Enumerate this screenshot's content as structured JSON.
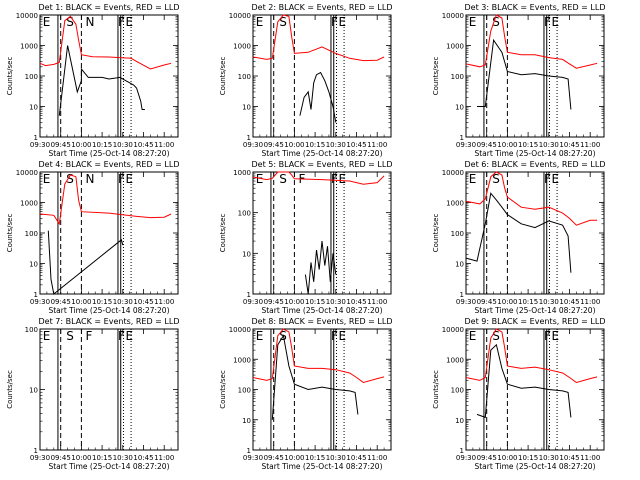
{
  "chart_data": [
    {
      "type": "line",
      "title": "Det 1: BLACK = Events, RED = LLD",
      "xlabel": "Start Time (25-Oct-14 08:27:20)",
      "ylabel": "Counts/sec",
      "yscale": "log",
      "ylim": [
        1,
        10000
      ],
      "x_ticks": [
        "09:30",
        "09:45",
        "10:00",
        "10:15",
        "10:30",
        "10:45",
        "11:00"
      ],
      "event_letters": [
        "E",
        "S",
        "N",
        "F",
        "E"
      ],
      "series": [
        {
          "color": "#ff0000",
          "x": [
            "09:30",
            "09:34",
            "09:40",
            "09:44",
            "09:48",
            "09:52",
            "09:56",
            "09:58",
            "10:00",
            "10:08",
            "10:20",
            "10:36",
            "10:40",
            "10:50",
            "11:00",
            "11:05"
          ],
          "y": [
            260,
            220,
            240,
            280,
            6500,
            9000,
            5000,
            1500,
            500,
            430,
            420,
            380,
            300,
            170,
            230,
            260
          ]
        },
        {
          "color": "#000000",
          "x": [
            "09:44",
            "09:50",
            "09:57",
            "10:00",
            "10:00",
            "10:05",
            "10:15",
            "10:20",
            "10:28",
            "10:38",
            "10:40",
            "10:43",
            "10:44",
            "10:46"
          ],
          "y": [
            5,
            1000,
            30,
            70,
            170,
            90,
            90,
            80,
            90,
            50,
            40,
            15,
            8,
            8
          ]
        }
      ]
    },
    {
      "type": "line",
      "title": "Det 2: BLACK = Events, RED = LLD",
      "xlabel": "Start Time (25-Oct-14 08:27:20)",
      "ylabel": "Counts/sec",
      "yscale": "log",
      "ylim": [
        1,
        10000
      ],
      "x_ticks": [
        "09:30",
        "09:45",
        "10:00",
        "10:15",
        "10:30",
        "10:45",
        "11:00"
      ],
      "event_letters": [
        "E",
        "S",
        "F",
        "E"
      ],
      "series": [
        {
          "color": "#ff0000",
          "x": [
            "09:30",
            "09:40",
            "09:44",
            "09:48",
            "09:52",
            "09:56",
            "09:58",
            "10:00",
            "10:10",
            "10:20",
            "10:30",
            "10:40",
            "10:50",
            "11:00",
            "11:05"
          ],
          "y": [
            420,
            350,
            380,
            6000,
            10000,
            9000,
            2000,
            550,
            600,
            900,
            550,
            380,
            320,
            330,
            420
          ]
        },
        {
          "color": "#000000",
          "x": [
            "10:04",
            "10:07",
            "10:10",
            "10:12",
            "10:14",
            "10:16",
            "10:19",
            "10:22",
            "10:25",
            "10:28",
            "10:30"
          ],
          "y": [
            5,
            20,
            30,
            8,
            60,
            110,
            130,
            70,
            30,
            10,
            3
          ]
        }
      ]
    },
    {
      "type": "line",
      "title": "Det 3: BLACK = Events, RED = LLD",
      "xlabel": "Start Time (25-Oct-14 08:27:20)",
      "ylabel": "Counts/sec",
      "yscale": "log",
      "ylim": [
        1,
        10000
      ],
      "x_ticks": [
        "09:30",
        "09:45",
        "10:00",
        "10:15",
        "10:30",
        "10:45",
        "11:00"
      ],
      "event_letters": [
        "E",
        "S",
        "F",
        "E"
      ],
      "series": [
        {
          "color": "#ff0000",
          "x": [
            "09:30",
            "09:40",
            "09:44",
            "09:48",
            "09:52",
            "09:56",
            "09:58",
            "10:00",
            "10:10",
            "10:20",
            "10:30",
            "10:40",
            "10:45",
            "10:50",
            "11:00",
            "11:05"
          ],
          "y": [
            250,
            200,
            230,
            3000,
            10000,
            8000,
            2000,
            600,
            500,
            500,
            400,
            350,
            250,
            180,
            230,
            260
          ]
        },
        {
          "color": "#000000",
          "x": [
            "09:38",
            "09:44",
            "09:50",
            "09:56",
            "10:00",
            "10:10",
            "10:20",
            "10:30",
            "10:40",
            "10:44",
            "10:46"
          ],
          "y": [
            10,
            10,
            1500,
            600,
            140,
            110,
            120,
            100,
            90,
            80,
            8
          ]
        }
      ]
    },
    {
      "type": "line",
      "title": "Det 4: BLACK = Events, RED = LLD",
      "xlabel": "Start Time (25-Oct-14 08:27:20)",
      "ylabel": "Counts/sec",
      "yscale": "log",
      "ylim": [
        1,
        10000
      ],
      "x_ticks": [
        "09:30",
        "09:45",
        "10:00",
        "10:15",
        "10:30",
        "10:45",
        "11:00"
      ],
      "event_letters": [
        "E",
        "S",
        "N",
        "F",
        "E"
      ],
      "series": [
        {
          "color": "#ff0000",
          "x": [
            "09:30",
            "09:40",
            "09:44",
            "09:48",
            "09:52",
            "09:56",
            "09:58",
            "10:00",
            "10:20",
            "10:40",
            "10:50",
            "11:00",
            "11:05"
          ],
          "y": [
            420,
            380,
            200,
            4000,
            8000,
            7000,
            1200,
            500,
            450,
            350,
            320,
            330,
            420
          ]
        },
        {
          "color": "#000000",
          "x": [
            "09:36",
            "09:38",
            "09:40",
            "10:29",
            "10:30"
          ],
          "y": [
            120,
            3,
            1,
            60,
            40
          ]
        }
      ]
    },
    {
      "type": "line",
      "title": "Det 5: BLACK = Events, RED = LLD",
      "xlabel": "Start Time (25-Oct-14 08:27:20)",
      "ylabel": "Counts/sec",
      "yscale": "log",
      "ylim": [
        1,
        1000
      ],
      "x_ticks": [
        "09:30",
        "09:45",
        "10:00",
        "10:15",
        "10:30",
        "10:45",
        "11:00"
      ],
      "event_letters": [
        "E",
        "S",
        "F",
        "F",
        "E"
      ],
      "series": [
        {
          "color": "#ff0000",
          "x": [
            "09:30",
            "09:40",
            "09:44",
            "09:48",
            "09:52",
            "09:56",
            "09:58",
            "10:00",
            "10:20",
            "10:40",
            "10:50",
            "11:00",
            "11:05"
          ],
          "y": [
            750,
            650,
            700,
            1000,
            1000,
            1000,
            850,
            680,
            650,
            600,
            500,
            550,
            800
          ]
        },
        {
          "color": "#000000",
          "x": [
            "10:08",
            "10:10",
            "10:12",
            "10:14",
            "10:16",
            "10:18",
            "10:20",
            "10:22",
            "10:24",
            "10:26",
            "10:28",
            "10:30"
          ],
          "y": [
            3,
            1,
            6,
            2,
            12,
            4,
            20,
            5,
            15,
            2,
            10,
            3
          ]
        }
      ]
    },
    {
      "type": "line",
      "title": "Det 6: BLACK = Events, RED = LLD",
      "xlabel": "Start Time (25-Oct-14 08:27:20)",
      "ylabel": "Counts/sec",
      "yscale": "log",
      "ylim": [
        1,
        10000
      ],
      "x_ticks": [
        "09:30",
        "09:45",
        "10:00",
        "10:15",
        "10:30",
        "10:45",
        "11:00"
      ],
      "event_letters": [
        "E",
        "S",
        "F",
        "E"
      ],
      "series": [
        {
          "color": "#ff0000",
          "x": [
            "09:30",
            "09:40",
            "09:44",
            "09:48",
            "09:52",
            "09:56",
            "09:58",
            "10:00",
            "10:10",
            "10:20",
            "10:30",
            "10:40",
            "10:45",
            "10:50",
            "11:00",
            "11:05"
          ],
          "y": [
            1100,
            900,
            1300,
            7000,
            10000,
            8000,
            3000,
            1500,
            700,
            600,
            700,
            450,
            300,
            180,
            260,
            260
          ]
        },
        {
          "color": "#000000",
          "x": [
            "09:30",
            "09:38",
            "09:44",
            "09:48",
            "09:52",
            "09:56",
            "10:00",
            "10:10",
            "10:20",
            "10:30",
            "10:40",
            "10:44",
            "10:46"
          ],
          "y": [
            15,
            12,
            200,
            2000,
            1200,
            700,
            400,
            200,
            150,
            250,
            180,
            80,
            5
          ]
        }
      ]
    },
    {
      "type": "line",
      "title": "Det 7: BLACK = Events, RED = LLD",
      "xlabel": "Start Time (25-Oct-14 08:27:20)",
      "ylabel": "Counts/sec",
      "yscale": "log",
      "ylim": [
        1,
        100
      ],
      "x_ticks": [
        "09:30",
        "09:45",
        "10:00",
        "10:15",
        "10:30",
        "10:45",
        "11:00"
      ],
      "event_letters": [
        "E",
        "S",
        "F",
        "F",
        "E"
      ],
      "series": []
    },
    {
      "type": "line",
      "title": "Det 8: BLACK = Events, RED = LLD",
      "xlabel": "Start Time (25-Oct-14 08:27:20)",
      "ylabel": "Counts/sec",
      "yscale": "log",
      "ylim": [
        1,
        10000
      ],
      "x_ticks": [
        "09:30",
        "09:45",
        "10:00",
        "10:15",
        "10:30",
        "10:45",
        "11:00"
      ],
      "event_letters": [
        "E",
        "S",
        "F",
        "E"
      ],
      "series": [
        {
          "color": "#ff0000",
          "x": [
            "09:30",
            "09:40",
            "09:44",
            "09:48",
            "09:52",
            "09:56",
            "09:58",
            "10:00",
            "10:10",
            "10:20",
            "10:30",
            "10:40",
            "10:45",
            "10:50",
            "11:00",
            "11:05"
          ],
          "y": [
            250,
            200,
            230,
            6000,
            10000,
            8000,
            2500,
            600,
            500,
            500,
            450,
            350,
            250,
            170,
            230,
            260
          ]
        },
        {
          "color": "#000000",
          "x": [
            "09:44",
            "09:48",
            "09:52",
            "09:56",
            "10:00",
            "10:10",
            "10:20",
            "10:30",
            "10:40",
            "10:44",
            "10:46"
          ],
          "y": [
            10,
            3000,
            6000,
            600,
            150,
            100,
            120,
            100,
            90,
            80,
            15
          ]
        }
      ]
    },
    {
      "type": "line",
      "title": "Det 9: BLACK = Events, RED = LLD",
      "xlabel": "Start Time (25-Oct-14 08:27:20)",
      "ylabel": "Counts/sec",
      "yscale": "log",
      "ylim": [
        1,
        10000
      ],
      "x_ticks": [
        "09:30",
        "09:45",
        "10:00",
        "10:15",
        "10:30",
        "10:45",
        "11:00"
      ],
      "event_letters": [
        "E",
        "S",
        "F",
        "E"
      ],
      "series": [
        {
          "color": "#ff0000",
          "x": [
            "09:30",
            "09:40",
            "09:44",
            "09:48",
            "09:52",
            "09:56",
            "09:58",
            "10:00",
            "10:10",
            "10:20",
            "10:30",
            "10:40",
            "10:45",
            "10:50",
            "11:00",
            "11:05"
          ],
          "y": [
            250,
            200,
            250,
            5000,
            10000,
            8000,
            2500,
            600,
            500,
            550,
            450,
            350,
            250,
            170,
            230,
            260
          ]
        },
        {
          "color": "#000000",
          "x": [
            "09:38",
            "09:44",
            "09:48",
            "09:52",
            "09:56",
            "10:00",
            "10:10",
            "10:20",
            "10:30",
            "10:40",
            "10:44",
            "10:46"
          ],
          "y": [
            15,
            12,
            2000,
            3000,
            500,
            150,
            110,
            120,
            100,
            90,
            80,
            12
          ]
        }
      ]
    }
  ]
}
